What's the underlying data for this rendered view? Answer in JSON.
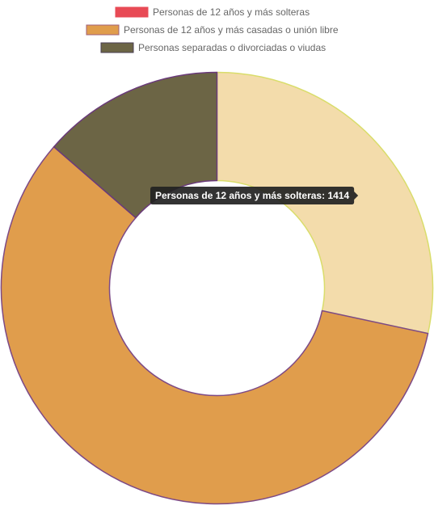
{
  "chart_data": {
    "type": "doughnut",
    "title": "",
    "legend_position": "top",
    "series": [
      {
        "name": "",
        "categories": [
          "Personas de 12 años y más solteras",
          "Personas de 12 años y más casadas o unión libre",
          "Personas separadas o divorciadas o viudas"
        ],
        "values": [
          1414,
          2890,
          680
        ],
        "fill_colors": [
          "#f3dcab",
          "#e09d4c",
          "#6c6545"
        ],
        "border_colors": [
          "#d9dd6b",
          "#7d4a86",
          "#6a3a7a"
        ]
      }
    ],
    "legend_swatches": [
      "#e84a55",
      "#e09d4c",
      "#6c6545"
    ],
    "legend_swatch_borders": [
      "#e84a55",
      "#a0607a",
      "#4a3f55"
    ],
    "tooltip": {
      "category_index": 0,
      "text": "Personas de 12 años y más solteras: 1414",
      "background": "#222222"
    }
  }
}
